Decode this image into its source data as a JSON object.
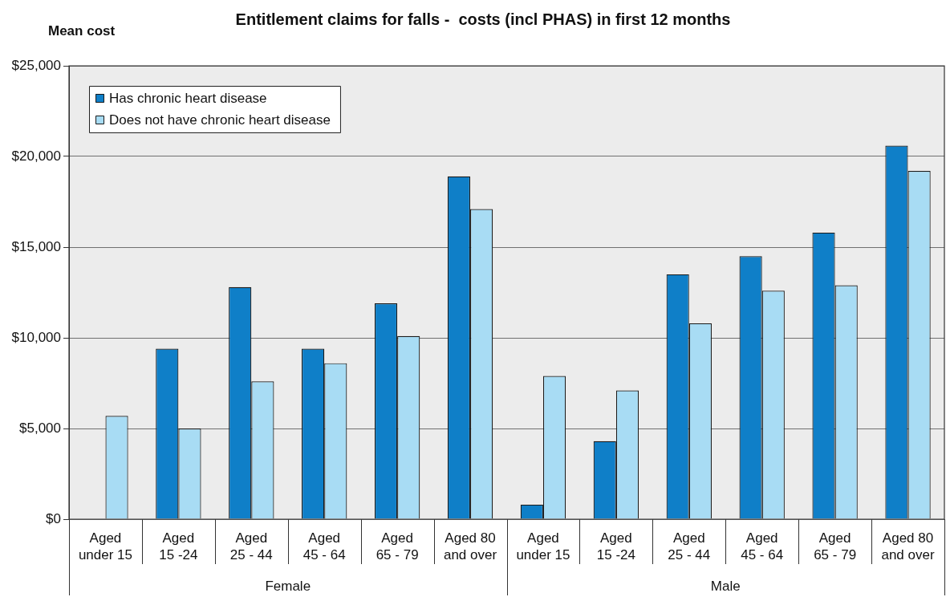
{
  "chart_data": {
    "type": "bar",
    "title": "Entitlement claims for falls -  costs (incl PHAS) in first 12 months",
    "ylabel": "Mean cost",
    "categories": [
      "Aged\nunder 15",
      "Aged\n15 -24",
      "Aged\n25 - 44",
      "Aged\n45 - 64",
      "Aged\n65 - 79",
      "Aged 80\nand over",
      "Aged\nunder 15",
      "Aged\n15 -24",
      "Aged\n25 - 44",
      "Aged\n45 - 64",
      "Aged\n65 - 79",
      "Aged 80\nand over"
    ],
    "series": [
      {
        "name": "Has chronic heart disease",
        "color": "#0f7fc8",
        "values": [
          null,
          9400,
          12800,
          9400,
          11900,
          18900,
          800,
          4300,
          13500,
          14500,
          15800,
          20600
        ]
      },
      {
        "name": "Does not have chronic heart disease",
        "color": "#a8dcf4",
        "values": [
          5700,
          5000,
          7600,
          8600,
          10100,
          17100,
          7900,
          7100,
          10800,
          12600,
          12900,
          19200
        ]
      }
    ],
    "ylim": [
      0,
      25000
    ],
    "yticks": [
      {
        "value": 0,
        "label": "$0"
      },
      {
        "value": 5000,
        "label": "$5,000"
      },
      {
        "value": 10000,
        "label": "$10,000"
      },
      {
        "value": 15000,
        "label": "$15,000"
      },
      {
        "value": 20000,
        "label": "$20,000"
      },
      {
        "value": 25000,
        "label": "$25,000"
      }
    ],
    "grid": "y",
    "legend": "top left",
    "annotations": [
      "Female",
      "Male"
    ]
  }
}
